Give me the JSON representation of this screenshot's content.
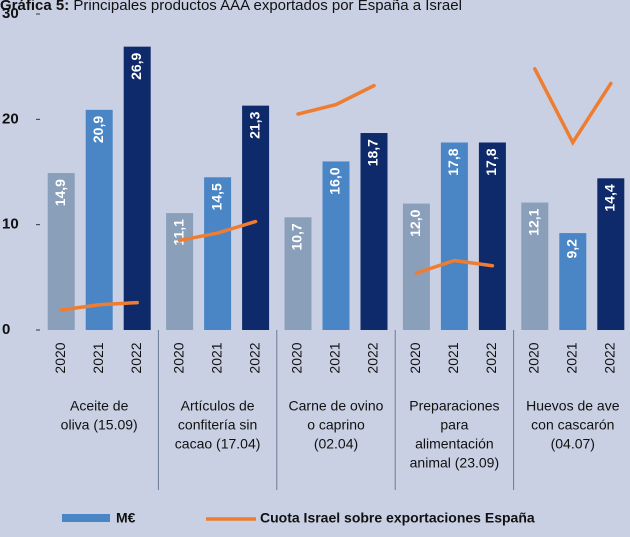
{
  "chart_data": {
    "type": "grouped-bar-line",
    "title": {
      "bold": "Gráfica 5:",
      "text": "Principales productos AAA exportados por España a Israel"
    },
    "ylim": [
      0,
      30
    ],
    "yticks": [
      0,
      10,
      20,
      30
    ],
    "colors": {
      "2020": "#8a9fba",
      "2021": "#4a86c6",
      "2022": "#0e2a6a",
      "line": "#ee7d31"
    },
    "legend": {
      "bars": "M€",
      "line": "Cuota Israel sobre exportaciones España"
    },
    "groups": [
      {
        "label": [
          "Aceite de",
          "oliva  (15.09)"
        ],
        "categories": [
          "2020",
          "2021",
          "2022"
        ],
        "values": [
          14.9,
          20.9,
          26.9
        ],
        "value_labels": [
          "14,9",
          "20,9",
          "26,9"
        ],
        "share": [
          1.9,
          2.4,
          2.6
        ]
      },
      {
        "label": [
          "Artículos de",
          "confitería sin",
          "cacao (17.04)"
        ],
        "categories": [
          "2020",
          "2021",
          "2022"
        ],
        "values": [
          11.1,
          14.5,
          21.3
        ],
        "value_labels": [
          "11,1",
          "14,5",
          "21,3"
        ],
        "share": [
          8.5,
          9.2,
          10.3
        ]
      },
      {
        "label": [
          "Carne de ovino",
          "o caprino",
          "(02.04)"
        ],
        "categories": [
          "2020",
          "2021",
          "2022"
        ],
        "values": [
          10.7,
          16.0,
          18.7
        ],
        "value_labels": [
          "10,7",
          "16,0",
          "18,7"
        ],
        "share": [
          20.5,
          21.4,
          23.2
        ]
      },
      {
        "label": [
          "Preparaciones",
          "para",
          "alimentación",
          "animal  (23.09)"
        ],
        "categories": [
          "2020",
          "2021",
          "2022"
        ],
        "values": [
          12.0,
          17.8,
          17.8
        ],
        "value_labels": [
          "12,0",
          "17,8",
          "17,8"
        ],
        "share": [
          5.4,
          6.6,
          6.1
        ]
      },
      {
        "label": [
          "Huevos de ave",
          "con cascarón",
          "(04.07)"
        ],
        "categories": [
          "2020",
          "2021",
          "2022"
        ],
        "values": [
          12.1,
          9.2,
          14.4
        ],
        "value_labels": [
          "12,1",
          "9,2",
          "14,4"
        ],
        "share": [
          24.8,
          17.8,
          23.4
        ]
      }
    ]
  }
}
